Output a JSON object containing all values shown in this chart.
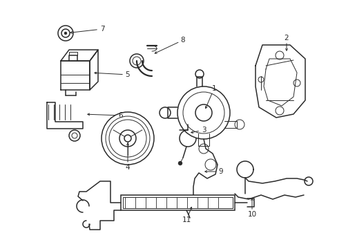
{
  "bg_color": "#ffffff",
  "line_color": "#2a2a2a",
  "fig_width": 4.89,
  "fig_height": 3.6,
  "dpi": 100,
  "label_fontsize": 7.5
}
